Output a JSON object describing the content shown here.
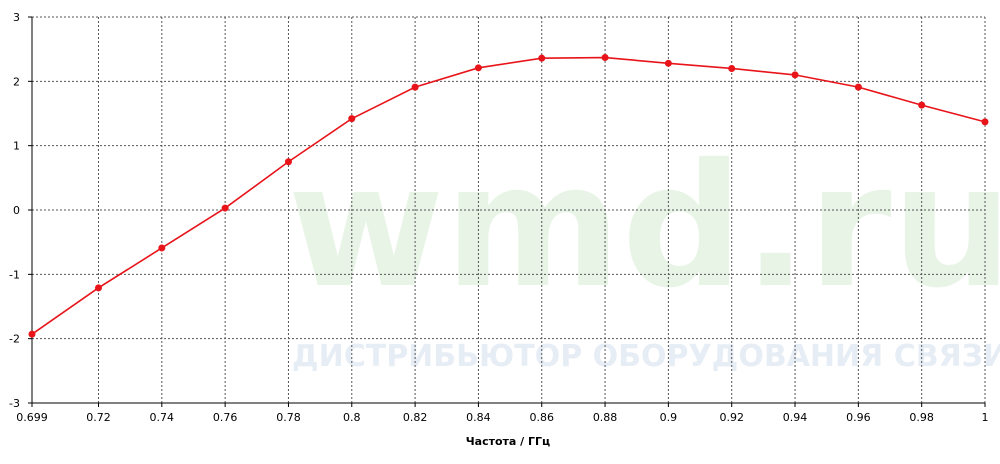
{
  "chart_data": {
    "type": "line",
    "x_label": "Частота / ГГц",
    "watermark": "wmd.ru",
    "watermark_subtitle": "ДИСТРИБЬЮТОР ОБОРУДОВАНИЯ СВЯЗИ",
    "x": [
      0.699,
      0.72,
      0.74,
      0.76,
      0.78,
      0.8,
      0.82,
      0.84,
      0.86,
      0.88,
      0.9,
      0.92,
      0.94,
      0.96,
      0.98,
      1
    ],
    "series": [
      {
        "color": "#e8141a",
        "values": [
          -1.93,
          -1.21,
          -0.59,
          0.03,
          0.75,
          1.42,
          1.91,
          2.21,
          2.36,
          2.37,
          2.28,
          2.2,
          2.1,
          1.91,
          1.63,
          1.37
        ]
      }
    ],
    "xlim": [
      0.699,
      1
    ],
    "xticks": [
      0.699,
      0.72,
      0.74,
      0.76,
      0.78,
      0.8,
      0.82,
      0.84,
      0.86,
      0.88,
      0.9,
      0.92,
      0.94,
      0.96,
      0.98,
      1
    ],
    "ylim": [
      -3,
      3
    ],
    "yticks": [
      -3,
      -2,
      -1,
      0,
      1,
      2,
      3
    ],
    "grid": true
  }
}
